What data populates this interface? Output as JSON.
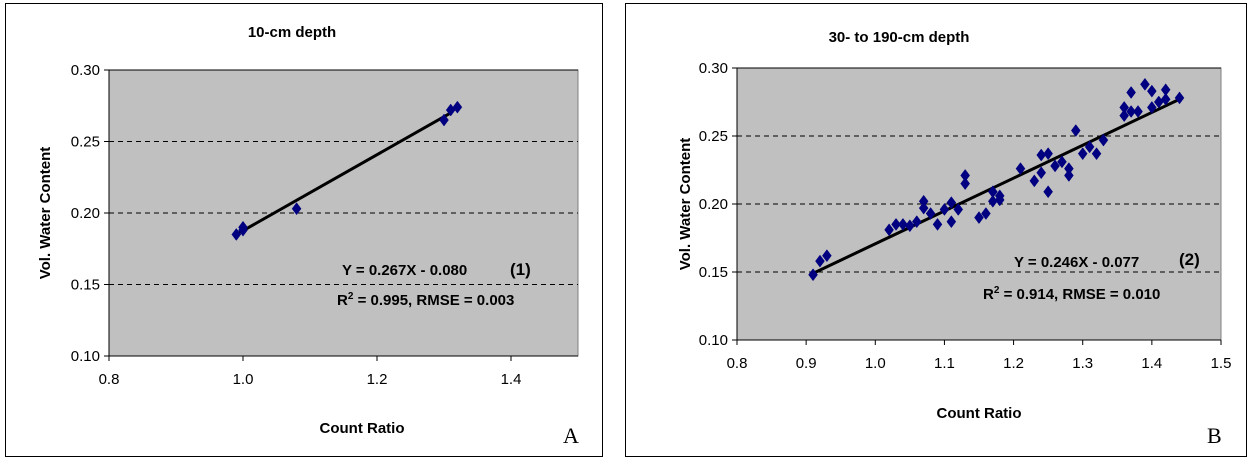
{
  "chart_data": [
    {
      "type": "scatter",
      "panel_letter": "A",
      "title": "10-cm depth",
      "xlabel": "Count Ratio",
      "ylabel": "Vol. Water Content",
      "xlim": [
        0.8,
        1.5
      ],
      "ylim": [
        0.1,
        0.3
      ],
      "xticks": [
        "0.8",
        "1.0",
        "1.2",
        "1.4"
      ],
      "xtick_values": [
        0.8,
        1.0,
        1.2,
        1.4
      ],
      "yticks": [
        "0.10",
        "0.15",
        "0.20",
        "0.25",
        "0.30"
      ],
      "ytick_values": [
        0.1,
        0.15,
        0.2,
        0.25,
        0.3
      ],
      "grid": "horizontal dashed",
      "plot_background": "#c0c0c0",
      "marker_color": "#000080",
      "fit_line_color": "#000000",
      "points": [
        [
          0.99,
          0.185
        ],
        [
          1.0,
          0.188
        ],
        [
          1.0,
          0.19
        ],
        [
          1.08,
          0.203
        ],
        [
          1.3,
          0.265
        ],
        [
          1.31,
          0.272
        ],
        [
          1.32,
          0.274
        ]
      ],
      "fit_line": {
        "x": [
          0.99,
          1.31
        ],
        "y": [
          0.185,
          0.27
        ]
      },
      "equation": "Y = 0.267X - 0.080",
      "equation_number": "(1)",
      "stats_r": "R",
      "stats_sup": "2",
      "stats_rest": " = 0.995, RMSE = 0.003"
    },
    {
      "type": "scatter",
      "panel_letter": "B",
      "title": "30- to 190-cm depth",
      "xlabel": "Count Ratio",
      "ylabel": "Vol. Water Content",
      "xlim": [
        0.8,
        1.5
      ],
      "ylim": [
        0.1,
        0.3
      ],
      "xticks": [
        "0.8",
        "0.9",
        "1.0",
        "1.1",
        "1.2",
        "1.3",
        "1.4",
        "1.5"
      ],
      "xtick_values": [
        0.8,
        0.9,
        1.0,
        1.1,
        1.2,
        1.3,
        1.4,
        1.5
      ],
      "yticks": [
        "0.10",
        "0.15",
        "0.20",
        "0.25",
        "0.30"
      ],
      "ytick_values": [
        0.1,
        0.15,
        0.2,
        0.25,
        0.3
      ],
      "grid": "horizontal dashed",
      "plot_background": "#c0c0c0",
      "marker_color": "#000080",
      "fit_line_color": "#000000",
      "points": [
        [
          0.91,
          0.148
        ],
        [
          0.92,
          0.158
        ],
        [
          0.93,
          0.162
        ],
        [
          1.02,
          0.181
        ],
        [
          1.03,
          0.185
        ],
        [
          1.04,
          0.185
        ],
        [
          1.05,
          0.184
        ],
        [
          1.06,
          0.187
        ],
        [
          1.07,
          0.202
        ],
        [
          1.07,
          0.197
        ],
        [
          1.08,
          0.193
        ],
        [
          1.09,
          0.185
        ],
        [
          1.1,
          0.196
        ],
        [
          1.11,
          0.201
        ],
        [
          1.11,
          0.187
        ],
        [
          1.12,
          0.196
        ],
        [
          1.13,
          0.215
        ],
        [
          1.13,
          0.221
        ],
        [
          1.15,
          0.19
        ],
        [
          1.16,
          0.193
        ],
        [
          1.17,
          0.202
        ],
        [
          1.17,
          0.209
        ],
        [
          1.18,
          0.203
        ],
        [
          1.18,
          0.206
        ],
        [
          1.21,
          0.226
        ],
        [
          1.23,
          0.217
        ],
        [
          1.24,
          0.223
        ],
        [
          1.24,
          0.236
        ],
        [
          1.25,
          0.209
        ],
        [
          1.25,
          0.237
        ],
        [
          1.26,
          0.228
        ],
        [
          1.27,
          0.231
        ],
        [
          1.28,
          0.221
        ],
        [
          1.28,
          0.226
        ],
        [
          1.29,
          0.254
        ],
        [
          1.3,
          0.237
        ],
        [
          1.31,
          0.242
        ],
        [
          1.32,
          0.237
        ],
        [
          1.33,
          0.247
        ],
        [
          1.36,
          0.271
        ],
        [
          1.36,
          0.265
        ],
        [
          1.37,
          0.282
        ],
        [
          1.37,
          0.268
        ],
        [
          1.38,
          0.268
        ],
        [
          1.39,
          0.288
        ],
        [
          1.4,
          0.283
        ],
        [
          1.4,
          0.271
        ],
        [
          1.41,
          0.275
        ],
        [
          1.42,
          0.284
        ],
        [
          1.42,
          0.277
        ],
        [
          1.44,
          0.278
        ]
      ],
      "fit_line": {
        "x": [
          0.91,
          1.44
        ],
        "y": [
          0.149,
          0.277
        ]
      },
      "equation": "Y = 0.246X - 0.077",
      "equation_number": "(2)",
      "stats_r": "R",
      "stats_sup": "2",
      "stats_rest": " = 0.914, RMSE = 0.010"
    }
  ]
}
